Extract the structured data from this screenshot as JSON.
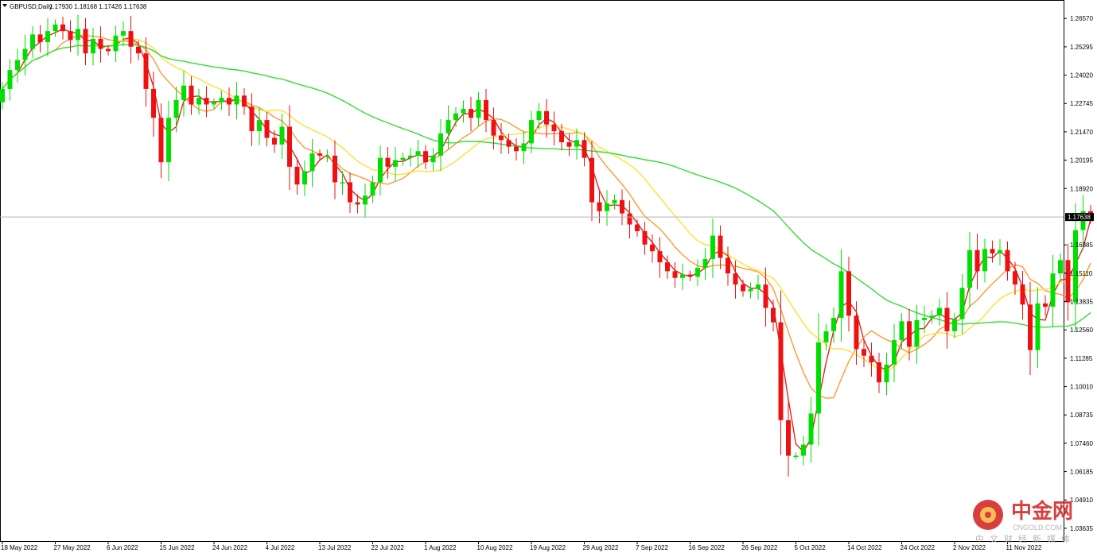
{
  "header": {
    "symbol_label": "GBPUSD,Daily",
    "ohlc": "1.17930 1.18168 1.17426 1.17638"
  },
  "current_price_label": "1.17638",
  "watermark": {
    "brand_cn": "中金网",
    "brand_en": "CNGOLD.COM",
    "tagline": "中文财经新媒体"
  },
  "chart_data": {
    "type": "candlestick",
    "symbol": "GBPUSD",
    "timeframe": "Daily",
    "ylim": [
      1.0306,
      1.274
    ],
    "y_ticks": [
      1.2657,
      1.25295,
      1.2402,
      1.22745,
      1.2147,
      1.20195,
      1.1892,
      1.17638,
      1.16385,
      1.1511,
      1.13835,
      1.1256,
      1.11285,
      1.1001,
      1.08735,
      1.0746,
      1.06185,
      1.0491,
      1.03635
    ],
    "y_tick_labels": [
      "1.26570",
      "1.25295",
      "1.24020",
      "1.22745",
      "1.21470",
      "1.20195",
      "1.18920",
      "",
      "1.16385",
      "1.15110",
      "1.13835",
      "1.12560",
      "1.11285",
      "1.10010",
      "1.08735",
      "1.07460",
      "1.06185",
      "1.04910",
      "1.03635"
    ],
    "x_tick_labels": [
      "18 May 2022",
      "27 May 2022",
      "6 Jun 2022",
      "15 Jun 2022",
      "24 Jun 2022",
      "4 Jul 2022",
      "13 Jul 2022",
      "22 Jul 2022",
      "1 Aug 2022",
      "10 Aug 2022",
      "19 Aug 2022",
      "29 Aug 2022",
      "7 Sep 2022",
      "16 Sep 2022",
      "26 Sep 2022",
      "5 Oct 2022",
      "14 Oct 2022",
      "24 Oct 2022",
      "2 Nov 2022",
      "11 Nov 2022"
    ],
    "x_tick_every": 7,
    "last_price": 1.17638,
    "up_color": "#00e000",
    "down_color": "#ee1111",
    "ma_colors": [
      "#e52222",
      "#ff9933",
      "#ffe033",
      "#33dd33"
    ],
    "closes": [
      1.234,
      1.2425,
      1.247,
      1.252,
      1.2585,
      1.255,
      1.26,
      1.263,
      1.26,
      1.256,
      1.261,
      1.25,
      1.2565,
      1.252,
      1.251,
      1.258,
      1.26,
      1.253,
      1.25,
      1.234,
      1.221,
      1.201,
      1.221,
      1.229,
      1.2355,
      1.227,
      1.23,
      1.227,
      1.228,
      1.23,
      1.227,
      1.231,
      1.226,
      1.215,
      1.22,
      1.212,
      1.209,
      1.217,
      1.199,
      1.191,
      1.197,
      1.205,
      1.204,
      1.204,
      1.192,
      1.192,
      1.183,
      1.182,
      1.186,
      1.192,
      1.203,
      1.199,
      1.202,
      1.203,
      1.204,
      1.206,
      1.201,
      1.204,
      1.214,
      1.22,
      1.223,
      1.225,
      1.221,
      1.229,
      1.22,
      1.213,
      1.211,
      1.208,
      1.206,
      1.2095,
      1.22,
      1.224,
      1.218,
      1.215,
      1.21,
      1.208,
      1.211,
      1.203,
      1.183,
      1.179,
      1.1825,
      1.184,
      1.178,
      1.173,
      1.17,
      1.164,
      1.161,
      1.156,
      1.152,
      1.149,
      1.1505,
      1.1495,
      1.1535,
      1.1575,
      1.168,
      1.158,
      1.151,
      1.146,
      1.143,
      1.144,
      1.146,
      1.1355,
      1.129,
      1.085,
      1.069,
      1.069,
      1.074,
      1.088,
      1.12,
      1.125,
      1.131,
      1.152,
      1.132,
      1.117,
      1.114,
      1.111,
      1.102,
      1.11,
      1.121,
      1.1295,
      1.118,
      1.13,
      1.131,
      1.132,
      1.1355,
      1.125,
      1.1305,
      1.1445,
      1.1615,
      1.152,
      1.162,
      1.16,
      1.1615,
      1.152,
      1.146,
      1.137,
      1.1165,
      1.1375,
      1.136,
      1.151,
      1.157,
      1.138,
      1.1705,
      1.179,
      1.1764
    ]
  }
}
